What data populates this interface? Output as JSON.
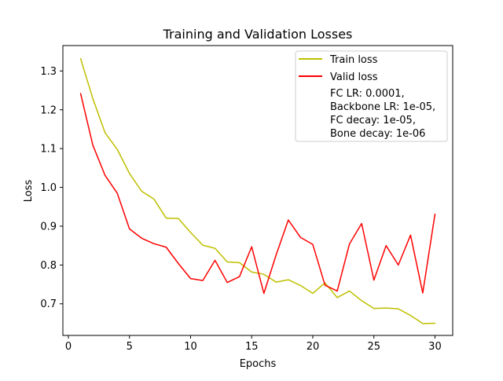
{
  "chart_data": {
    "type": "line",
    "title": "Training and Validation Losses",
    "xlabel": "Epochs",
    "ylabel": "Loss",
    "xlim": [
      -0.45,
      31.45
    ],
    "ylim": [
      0.6185,
      1.3655
    ],
    "xticks": [
      0,
      5,
      10,
      15,
      20,
      25,
      30
    ],
    "xtick_labels": [
      "0",
      "5",
      "10",
      "15",
      "20",
      "25",
      "30"
    ],
    "yticks": [
      0.7,
      0.8,
      0.9,
      1.0,
      1.1,
      1.2,
      1.3
    ],
    "ytick_labels": [
      "0.7",
      "0.8",
      "0.9",
      "1.0",
      "1.1",
      "1.2",
      "1.3"
    ],
    "grid": false,
    "legend_position": "top-right",
    "x": [
      1,
      2,
      3,
      4,
      5,
      6,
      7,
      8,
      9,
      10,
      11,
      12,
      13,
      14,
      15,
      16,
      17,
      18,
      19,
      20,
      21,
      22,
      23,
      24,
      25,
      26,
      27,
      28,
      29,
      30
    ],
    "series": [
      {
        "name": "Train loss",
        "color": "#bfbf00",
        "values": [
          1.332,
          1.229,
          1.141,
          1.098,
          1.036,
          0.99,
          0.97,
          0.921,
          0.92,
          0.884,
          0.851,
          0.843,
          0.808,
          0.806,
          0.782,
          0.776,
          0.756,
          0.762,
          0.747,
          0.727,
          0.754,
          0.716,
          0.733,
          0.708,
          0.688,
          0.689,
          0.687,
          0.67,
          0.649,
          0.65
        ]
      },
      {
        "name": "Valid loss",
        "color": "#ff0000",
        "values": [
          1.242,
          1.109,
          1.031,
          0.985,
          0.893,
          0.869,
          0.855,
          0.846,
          0.804,
          0.765,
          0.76,
          0.812,
          0.755,
          0.77,
          0.847,
          0.727,
          0.826,
          0.916,
          0.871,
          0.853,
          0.748,
          0.733,
          0.854,
          0.907,
          0.761,
          0.85,
          0.8,
          0.877,
          0.728,
          0.931
        ]
      }
    ],
    "legend_note": [
      "FC LR: 0.0001,",
      "Backbone LR: 1e-05,",
      "FC decay: 1e-05,",
      "Bone decay: 1e-06"
    ]
  }
}
